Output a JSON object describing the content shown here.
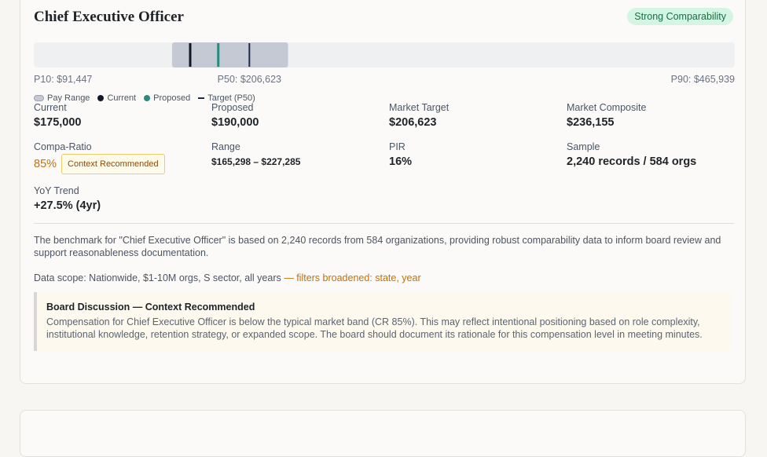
{
  "card": {
    "title": "Chief Executive Officer",
    "badge": "Strong Comparability",
    "range_bar": {
      "scale": [
        {
          "value": 91447,
          "label": "P10: $91,447"
        },
        {
          "value": 206623,
          "label": "P50: $206,623"
        },
        {
          "value": 465939,
          "label": "P90: $465,939"
        }
      ],
      "pay_range": [
        165298,
        227285
      ],
      "current": 175000,
      "proposed": 190000,
      "target": 206623
    },
    "legend": [
      "Pay Range",
      "Current",
      "Proposed",
      "Target (P50)"
    ],
    "metrics": [
      {
        "label": "Current",
        "value": "$175,000"
      },
      {
        "label": "Proposed",
        "value": "$190,000"
      },
      {
        "label": "Market Target",
        "value": "$206,623"
      },
      {
        "label": "Market Composite",
        "value": "$236,155"
      },
      {
        "label": "Compa-Ratio",
        "value": "85%",
        "badge": "Context Recommended"
      },
      {
        "label": "Range",
        "value": "$165,298 – $227,285"
      },
      {
        "label": "PIR",
        "value": "16%"
      },
      {
        "label": "Sample",
        "value": "2,240 records / 584 orgs"
      },
      {
        "label": "YoY Trend",
        "value": "+27.5% (4yr)"
      }
    ],
    "summary": "The benchmark for \"Chief Executive Officer\" is based on 2,240 records from 584 organizations, providing robust comparability data to inform board review and support reasonableness documentation.",
    "scope": {
      "text": "Data scope: Nationwide, $1-10M orgs, S sector, all years",
      "note": "— filters broadened: state, year"
    },
    "callout": {
      "title": "Board Discussion — Context Recommended",
      "body": "Compensation for Chief Executive Officer is below the typical market band (CR 85%). This may reflect intentional positioning based on role complexity, institutional knowledge, retention strategy, or expanded scope. The board should document its rationale for this compensation level in meeting minutes."
    }
  }
}
